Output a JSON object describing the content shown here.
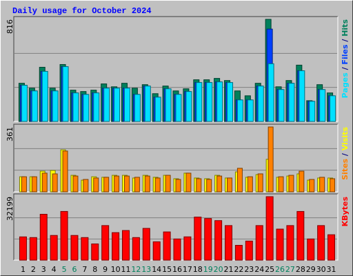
{
  "chart_data": [
    {
      "type": "bar",
      "title": "Daily usage for October 2024",
      "legend_separator": " / ",
      "ylim": [
        0,
        816
      ],
      "yticks": [
        816
      ],
      "gridlines": [
        272,
        544
      ],
      "grid": true,
      "series": [
        {
          "name": "Hits",
          "color": "#00805c",
          "values": [
            305,
            266,
            433,
            266,
            455,
            250,
            239,
            250,
            300,
            277,
            305,
            266,
            294,
            222,
            283,
            244,
            261,
            333,
            333,
            344,
            327,
            244,
            205,
            305,
            816,
            277,
            327,
            450,
            166,
            294,
            228
          ]
        },
        {
          "name": "Files",
          "color": "#0040ff",
          "values": [
            289,
            244,
            400,
            244,
            438,
            228,
            216,
            228,
            266,
            266,
            266,
            216,
            283,
            194,
            261,
            216,
            239,
            311,
            311,
            316,
            311,
            172,
            172,
            283,
            738,
            255,
            305,
            405,
            161,
            255,
            205
          ]
        },
        {
          "name": "Pages",
          "color": "#00e0ff",
          "values": [
            289,
            244,
            400,
            244,
            438,
            228,
            216,
            228,
            266,
            266,
            266,
            216,
            283,
            194,
            261,
            216,
            239,
            311,
            311,
            316,
            311,
            172,
            172,
            283,
            461,
            255,
            305,
            405,
            161,
            255,
            205
          ]
        }
      ]
    },
    {
      "type": "bar",
      "legend_separator": " / ",
      "ylim": [
        0,
        361
      ],
      "yticks": [
        361
      ],
      "gridlines": [
        120.3,
        240.7
      ],
      "grid": true,
      "series": [
        {
          "name": "Visits",
          "color": "#ffff00",
          "values": [
            84,
            84,
            115,
            119,
            234,
            92,
            65,
            84,
            81,
            92,
            92,
            77,
            92,
            81,
            92,
            73,
            104,
            77,
            73,
            92,
            77,
            111,
            81,
            96,
            181,
            81,
            88,
            100,
            65,
            77,
            77
          ]
        },
        {
          "name": "Sites",
          "color": "#ff8000",
          "values": [
            84,
            84,
            104,
            100,
            227,
            88,
            69,
            77,
            81,
            88,
            88,
            81,
            88,
            77,
            92,
            69,
            104,
            73,
            69,
            88,
            77,
            131,
            84,
            100,
            361,
            84,
            92,
            115,
            69,
            81,
            73
          ]
        }
      ]
    },
    {
      "type": "bar",
      "ylim": [
        0,
        32199
      ],
      "yticks": [
        32199
      ],
      "gridlines": [
        10733,
        21466
      ],
      "grid": true,
      "categories": [
        "1",
        "2",
        "3",
        "4",
        "5",
        "6",
        "7",
        "8",
        "9",
        "10",
        "11",
        "12",
        "13",
        "14",
        "15",
        "16",
        "17",
        "18",
        "19",
        "20",
        "21",
        "22",
        "23",
        "24",
        "25",
        "26",
        "27",
        "28",
        "29",
        "30",
        "31"
      ],
      "category_colors": [
        "#000",
        "#000",
        "#000",
        "#000",
        "#00805c",
        "#00805c",
        "#000",
        "#000",
        "#000",
        "#000",
        "#000",
        "#00805c",
        "#00805c",
        "#000",
        "#000",
        "#000",
        "#000",
        "#000",
        "#00805c",
        "#00805c",
        "#000",
        "#000",
        "#000",
        "#000",
        "#000",
        "#00805c",
        "#00805c",
        "#000",
        "#000",
        "#000",
        "#000"
      ],
      "series": [
        {
          "name": "KBytes",
          "color": "#ff0000",
          "values": [
            11800,
            11460,
            23270,
            12530,
            24700,
            12530,
            11460,
            8230,
            17540,
            13960,
            15030,
            11460,
            16110,
            9310,
            14320,
            10740,
            11820,
            21840,
            21120,
            20050,
            17540,
            7520,
            9670,
            17540,
            32199,
            15750,
            17540,
            24700,
            10740,
            17540,
            12890
          ]
        }
      ]
    }
  ]
}
